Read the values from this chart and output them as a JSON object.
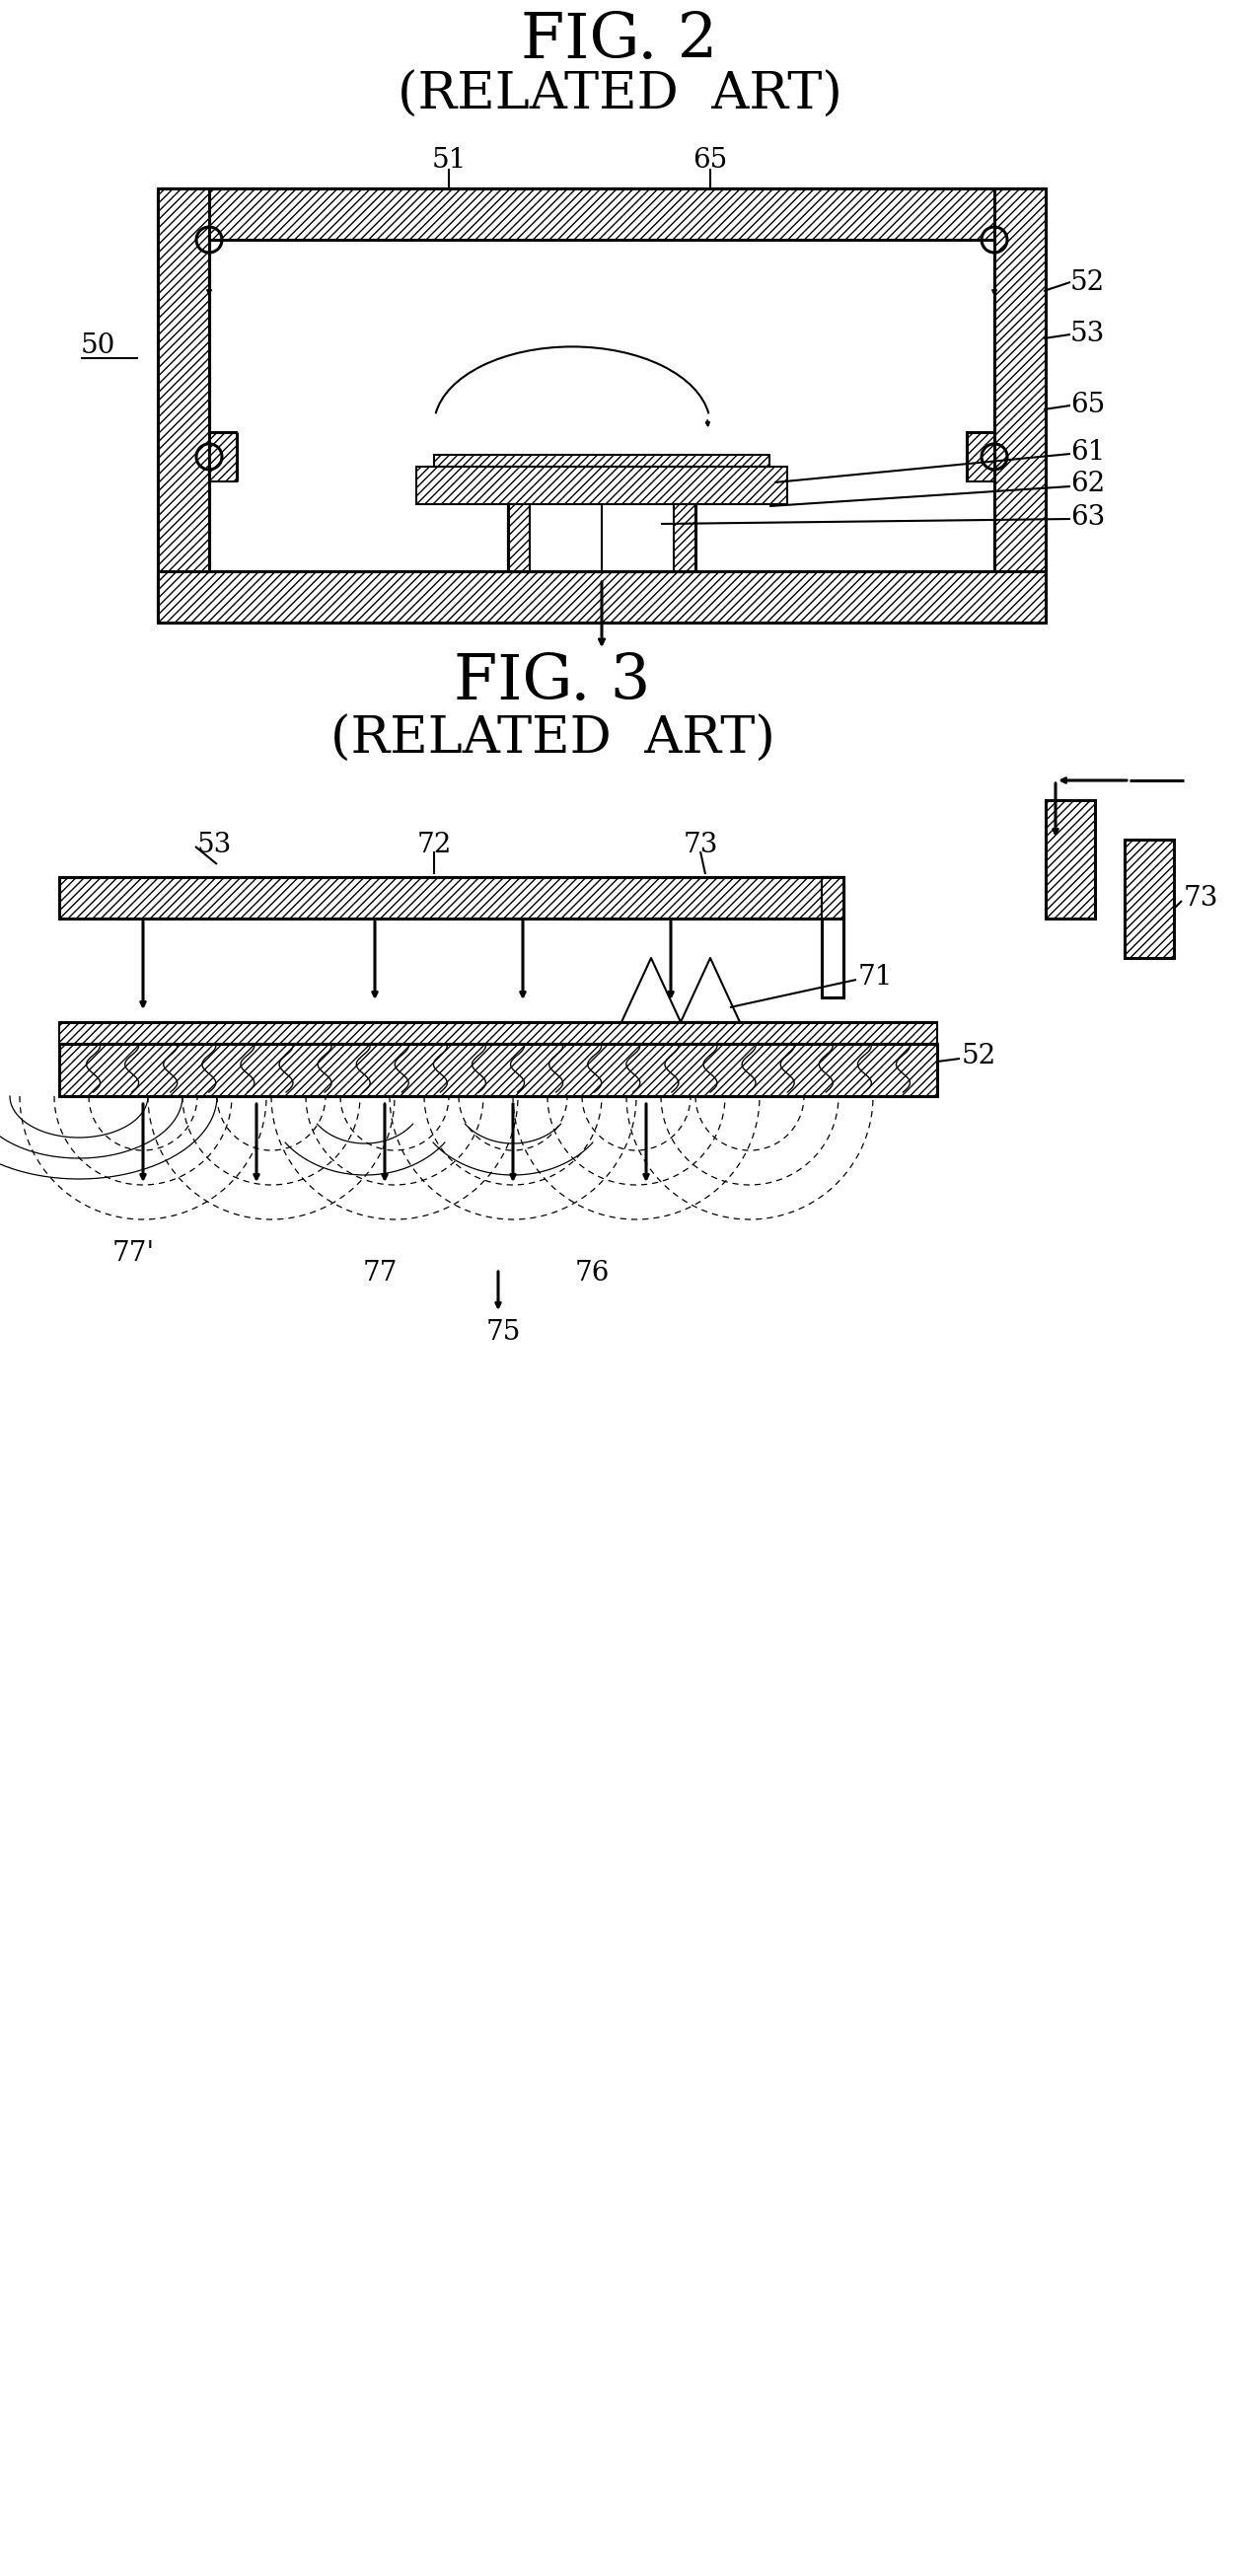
{
  "fig2_title": "FIG. 2",
  "fig2_subtitle": "(RELATED  ART)",
  "fig3_title": "FIG. 3",
  "fig3_subtitle": "(RELATED  ART)",
  "bg_color": "#ffffff",
  "lw_thin": 1.5,
  "lw_thick": 2.2,
  "label_fontsize": 20,
  "title_fontsize": 46,
  "subtitle_fontsize": 38
}
